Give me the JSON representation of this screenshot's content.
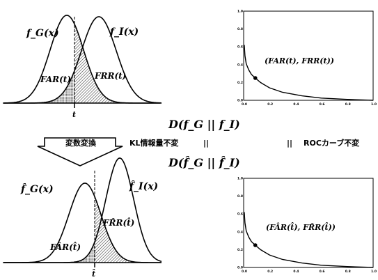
{
  "top_left": {
    "label_fg": "f_G(x)",
    "label_fi": "f_I(x)",
    "label_far": "FAR(t)",
    "label_frr": "FRR(t)",
    "label_t": "t"
  },
  "bottom_left": {
    "label_fg": "f̂_G(x)",
    "label_fi": "f̂_I(x)",
    "label_far": "FÂR(t̂)",
    "label_frr": "FR̂R(t̂)",
    "label_t": "t̂"
  },
  "middle": {
    "divergence_top": "D(f_G || f_I)",
    "divergence_bottom": "D(f̂_G || f̂_I)",
    "arrow_label": "変数変換",
    "kl_label": "KL情報量不変",
    "kl_equal": "||",
    "roc_equal": "||",
    "roc_label": "ROCカーブ不変"
  },
  "charts": {
    "y_ticks": [
      "1.0",
      "0.8",
      "0.6",
      "0.4",
      "0.2",
      "0.0"
    ],
    "x_ticks": [
      "0.0",
      "0.2",
      "0.4",
      "0.6",
      "0.8",
      "1.0"
    ],
    "top_point_label": "(FAR(t), FRR(t))",
    "bottom_point_label": "(FÂR(t̂), FR̂R(t̂))"
  },
  "chart_data": [
    {
      "type": "line",
      "xlim": [
        0,
        1
      ],
      "ylim": [
        0,
        1
      ],
      "x": [
        0.005,
        0.01,
        0.02,
        0.04,
        0.06,
        0.09,
        0.13,
        0.2,
        0.3,
        0.45,
        0.6,
        0.8,
        1.0
      ],
      "y": [
        0.62,
        0.5,
        0.41,
        0.34,
        0.29,
        0.25,
        0.2,
        0.14,
        0.09,
        0.05,
        0.025,
        0.01,
        0.0
      ],
      "marked_point": [
        0.09,
        0.25
      ],
      "x_ticks": [
        "0.0",
        "0.2",
        "0.4",
        "0.6",
        "0.8",
        "1.0"
      ],
      "y_ticks": [
        "0.0",
        "0.2",
        "0.4",
        "0.6",
        "0.8",
        "1.0"
      ]
    },
    {
      "type": "line",
      "xlim": [
        0,
        1
      ],
      "ylim": [
        0,
        1
      ],
      "x": [
        0.005,
        0.01,
        0.02,
        0.04,
        0.06,
        0.09,
        0.13,
        0.2,
        0.3,
        0.45,
        0.6,
        0.8,
        1.0
      ],
      "y": [
        0.62,
        0.5,
        0.41,
        0.34,
        0.29,
        0.25,
        0.2,
        0.14,
        0.09,
        0.05,
        0.025,
        0.01,
        0.0
      ],
      "marked_point": [
        0.09,
        0.25
      ],
      "x_ticks": [
        "0.0",
        "0.2",
        "0.4",
        "0.6",
        "0.8",
        "1.0"
      ],
      "y_ticks": [
        "0.0",
        "0.2",
        "0.4",
        "0.6",
        "0.8",
        "1.0"
      ]
    }
  ]
}
